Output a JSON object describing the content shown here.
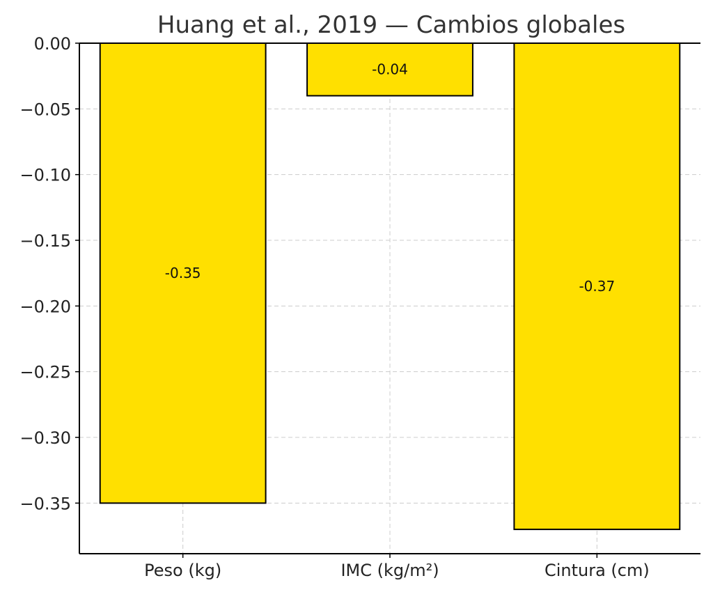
{
  "chart_data": {
    "type": "bar",
    "title": "Huang et al., 2019 — Cambios globales",
    "xlabel": "",
    "ylabel": "",
    "categories": [
      "Peso (kg)",
      "IMC (kg/m²)",
      "Cintura (cm)"
    ],
    "values": [
      -0.35,
      -0.04,
      -0.37
    ],
    "value_labels": [
      "-0.35",
      "-0.04",
      "-0.37"
    ],
    "ylim": [
      -0.3885,
      0.0
    ],
    "yticks": [
      0.0,
      -0.05,
      -0.1,
      -0.15,
      -0.2,
      -0.25,
      -0.3,
      -0.35
    ],
    "ytick_labels": [
      "0.00",
      "−0.05",
      "−0.10",
      "−0.15",
      "−0.20",
      "−0.25",
      "−0.30",
      "−0.35"
    ],
    "grid": true,
    "bar_color": "#FFE000",
    "edge_color": "#000000"
  }
}
